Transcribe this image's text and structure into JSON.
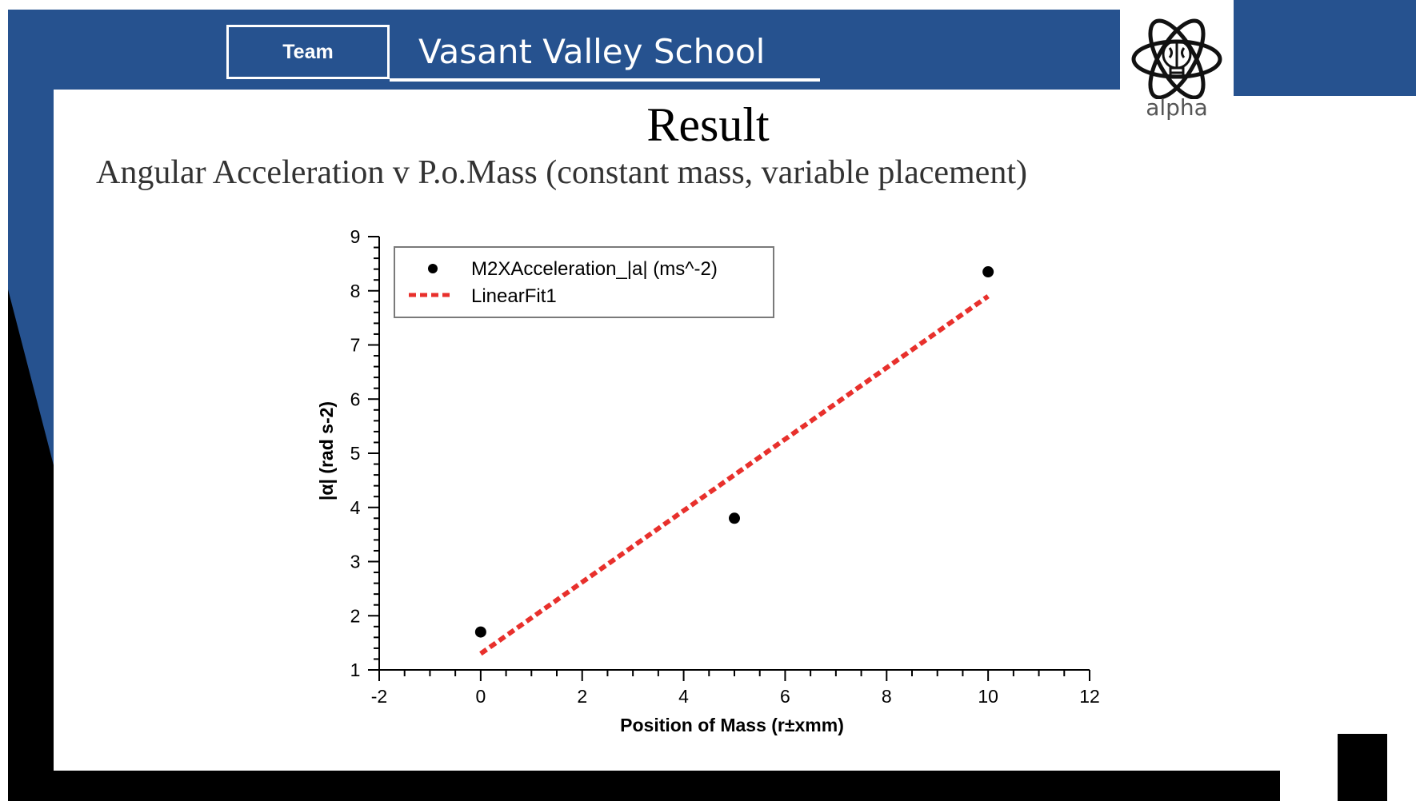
{
  "header": {
    "team_label": "Team",
    "school_name": "Vasant Valley School",
    "logo_text": "alpha",
    "logo_icon": "atom-lightbulb-icon",
    "brand_color": "#26528f"
  },
  "slide": {
    "title": "Result",
    "subtitle": "Angular Acceleration v P.o.Mass (constant mass, variable placement)"
  },
  "chart_data": {
    "type": "scatter",
    "xlabel": "Position of Mass (r±xmm)",
    "ylabel": "|α| (rad s-2)",
    "xlim": [
      -2,
      12
    ],
    "ylim": [
      1,
      9
    ],
    "x_ticks": [
      "-2",
      "0",
      "2",
      "4",
      "6",
      "8",
      "10",
      "12"
    ],
    "y_ticks": [
      "1",
      "2",
      "3",
      "4",
      "5",
      "6",
      "7",
      "8",
      "9"
    ],
    "grid": false,
    "legend_position": "top-left",
    "series": [
      {
        "name": "M2XAcceleration_|a| (ms^-2)",
        "type": "scatter",
        "color": "#000000",
        "x": [
          0,
          5,
          10
        ],
        "y": [
          1.7,
          3.8,
          8.35
        ]
      },
      {
        "name": "LinearFit1",
        "type": "line",
        "style": "dashed",
        "color": "#e8302c",
        "x": [
          0,
          10
        ],
        "y": [
          1.3,
          7.9
        ]
      }
    ]
  }
}
